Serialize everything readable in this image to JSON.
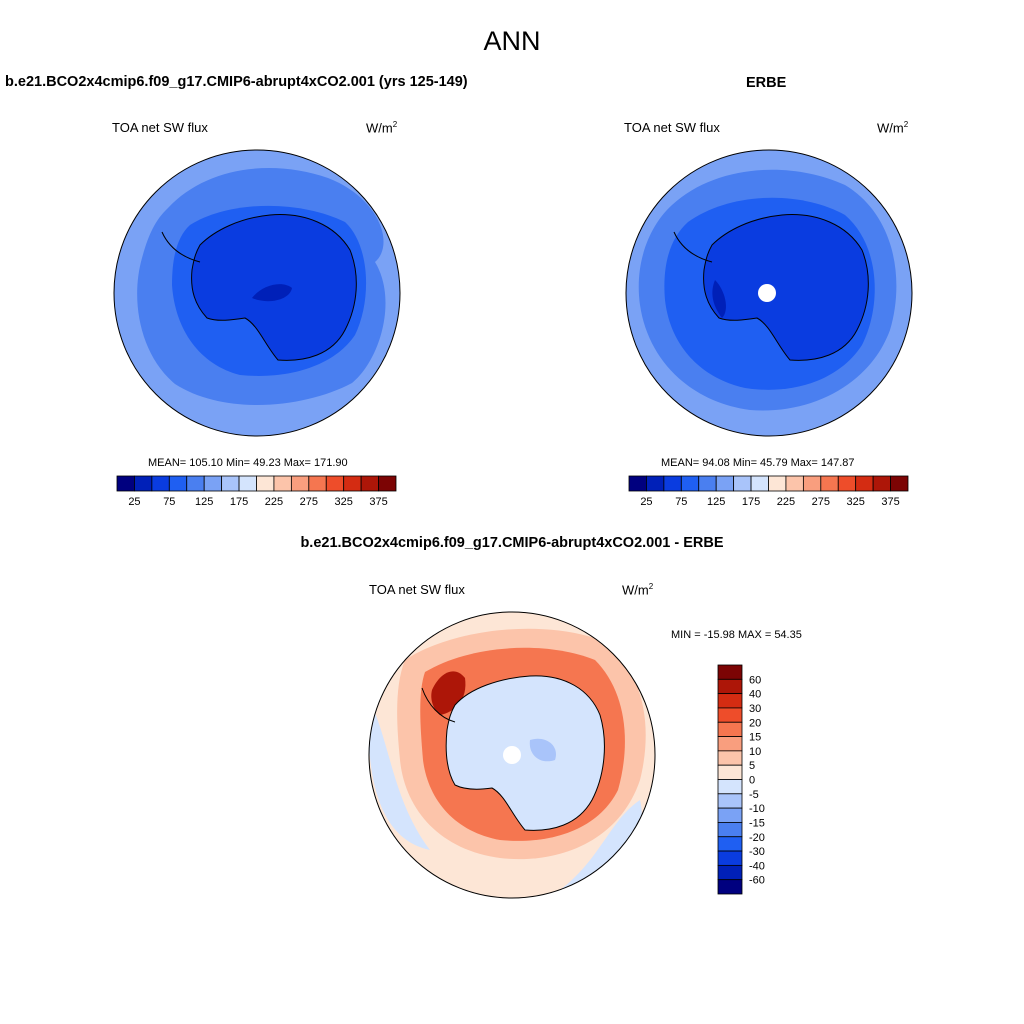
{
  "main_title": "ANN",
  "panels": [
    {
      "title": "b.e21.BCO2x4cmip6.f09_g17.CMIP6-abrupt4xCO2.001 (yrs 125-149)",
      "variable": "TOA net SW flux",
      "units": "W/m",
      "units_exp": "2",
      "stats": "MEAN= 105.10  Min=  49.23  Max= 171.90"
    },
    {
      "title": "ERBE",
      "variable": "TOA net SW flux",
      "units": "W/m",
      "units_exp": "2",
      "stats": "MEAN=  94.08  Min=  45.79  Max= 147.87"
    },
    {
      "title": "b.e21.BCO2x4cmip6.f09_g17.CMIP6-abrupt4xCO2.001 - ERBE",
      "variable": "TOA net SW flux",
      "units": "W/m",
      "units_exp": "2",
      "stats": "MIN = -15.98 MAX =  54.35"
    }
  ],
  "colors": {
    "abs_scale": [
      "#00007f",
      "#0020b8",
      "#0a3ce0",
      "#1f5ff2",
      "#4a7ff0",
      "#7aa2f5",
      "#a9c4fa",
      "#d4e4fd",
      "#fde6d6",
      "#fcc4aa",
      "#f99e7e",
      "#f57650",
      "#ee4d2a",
      "#d42c12",
      "#ad1608",
      "#7c0404"
    ],
    "diff_scale": [
      "#00007f",
      "#0020b8",
      "#0a3ce0",
      "#1f5ff2",
      "#4a7ff0",
      "#7aa2f5",
      "#a9c4fa",
      "#d4e4fd",
      "#fde6d6",
      "#fcc4aa",
      "#f99e7e",
      "#f57650",
      "#ee4d2a",
      "#d42c12",
      "#ad1608",
      "#7c0404"
    ]
  },
  "chart_data": [
    {
      "type": "heatmap",
      "projection": "south polar stereographic",
      "title": "b.e21.BCO2x4cmip6.f09_g17.CMIP6-abrupt4xCO2.001 (yrs 125-149)",
      "variable": "TOA net SW flux",
      "units": "W/m2",
      "mean": 105.1,
      "min": 49.23,
      "max": 171.9,
      "colorbar_levels": [
        25,
        50,
        75,
        100,
        125,
        150,
        175,
        200,
        225,
        250,
        275,
        300,
        325,
        350,
        375
      ],
      "colorbar_tick_labels": [
        "25",
        "75",
        "125",
        "175",
        "225",
        "275",
        "325",
        "375"
      ]
    },
    {
      "type": "heatmap",
      "projection": "south polar stereographic",
      "title": "ERBE",
      "variable": "TOA net SW flux",
      "units": "W/m2",
      "mean": 94.08,
      "min": 45.79,
      "max": 147.87,
      "colorbar_levels": [
        25,
        50,
        75,
        100,
        125,
        150,
        175,
        200,
        225,
        250,
        275,
        300,
        325,
        350,
        375
      ],
      "colorbar_tick_labels": [
        "25",
        "75",
        "125",
        "175",
        "225",
        "275",
        "325",
        "375"
      ]
    },
    {
      "type": "heatmap",
      "projection": "south polar stereographic",
      "title": "b.e21.BCO2x4cmip6.f09_g17.CMIP6-abrupt4xCO2.001 - ERBE",
      "variable": "TOA net SW flux",
      "units": "W/m2",
      "min": -15.98,
      "max": 54.35,
      "colorbar_levels": [
        60,
        40,
        30,
        20,
        15,
        10,
        5,
        0,
        -5,
        -10,
        -15,
        -20,
        -30,
        -40,
        -60
      ],
      "colorbar_tick_labels": [
        "60",
        "40",
        "30",
        "20",
        "15",
        "10",
        "5",
        "0",
        "-5",
        "-10",
        "-15",
        "-20",
        "-30",
        "-40",
        "-60"
      ]
    }
  ]
}
